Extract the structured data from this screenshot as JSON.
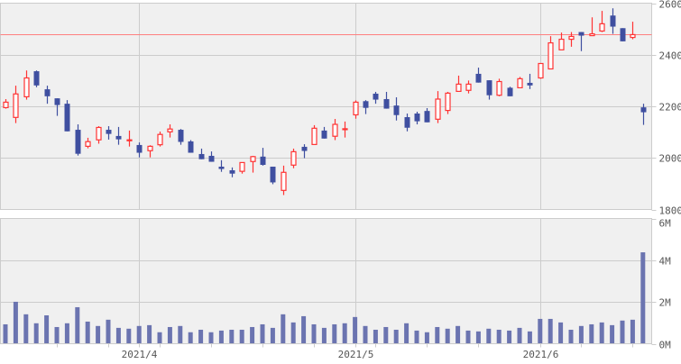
{
  "chart_data": {
    "type": "candlestick",
    "title": "",
    "colors": {
      "up": "#ff3333",
      "down": "#3f4fa0",
      "volume": "#6b74b0",
      "reference_line": "#ff8080",
      "plot_bg": "#f0f0f0",
      "grid": "#cccccc"
    },
    "price_axis": {
      "ylim": [
        1800,
        2600
      ],
      "ticks": [
        "1800",
        "2000",
        "2200",
        "2400",
        "2600"
      ]
    },
    "volume_axis": {
      "ylim": [
        0,
        6
      ],
      "unit": "M",
      "ticks": [
        "0M",
        "2M",
        "4M",
        "6M"
      ]
    },
    "reference_line": 2478,
    "x_labels": [
      {
        "index": 13,
        "label": "2021/4"
      },
      {
        "index": 34,
        "label": "2021/5"
      },
      {
        "index": 52,
        "label": "2021/6"
      }
    ],
    "minor_tick_indices": [
      5,
      10,
      15,
      20,
      25,
      30,
      36,
      41,
      46,
      56,
      61
    ],
    "ohlc": [
      [
        2195,
        2228,
        2191,
        2216
      ],
      [
        2157,
        2280,
        2135,
        2248
      ],
      [
        2237,
        2339,
        2226,
        2310
      ],
      [
        2336,
        2339,
        2274,
        2281
      ],
      [
        2266,
        2280,
        2210,
        2239
      ],
      [
        2231,
        2231,
        2163,
        2205
      ],
      [
        2210,
        2224,
        2103,
        2103
      ],
      [
        2109,
        2130,
        2009,
        2016
      ],
      [
        2045,
        2078,
        2037,
        2063
      ],
      [
        2070,
        2123,
        2055,
        2118
      ],
      [
        2109,
        2123,
        2071,
        2093
      ],
      [
        2085,
        2120,
        2051,
        2072
      ],
      [
        2068,
        2106,
        2044,
        2070
      ],
      [
        2050,
        2060,
        2002,
        2020
      ],
      [
        2028,
        2049,
        2002,
        2045
      ],
      [
        2051,
        2102,
        2044,
        2091
      ],
      [
        2101,
        2130,
        2079,
        2112
      ],
      [
        2109,
        2112,
        2051,
        2062
      ],
      [
        2064,
        2069,
        2020,
        2020
      ],
      [
        2015,
        2036,
        1995,
        1995
      ],
      [
        2008,
        2025,
        1985,
        1985
      ],
      [
        1966,
        1991,
        1946,
        1957
      ],
      [
        1952,
        1963,
        1925,
        1939
      ],
      [
        1948,
        1982,
        1939,
        1982
      ],
      [
        1986,
        2008,
        1943,
        2005
      ],
      [
        2005,
        2039,
        1970,
        1973
      ],
      [
        1966,
        1966,
        1898,
        1905
      ],
      [
        1874,
        1970,
        1856,
        1944
      ],
      [
        1972,
        2036,
        1960,
        2024
      ],
      [
        2043,
        2053,
        1999,
        2027
      ],
      [
        2052,
        2127,
        2052,
        2115
      ],
      [
        2106,
        2120,
        2075,
        2075
      ],
      [
        2084,
        2151,
        2069,
        2130
      ],
      [
        2111,
        2141,
        2079,
        2113
      ],
      [
        2167,
        2223,
        2152,
        2216
      ],
      [
        2220,
        2224,
        2170,
        2194
      ],
      [
        2249,
        2256,
        2210,
        2226
      ],
      [
        2228,
        2256,
        2191,
        2191
      ],
      [
        2203,
        2235,
        2145,
        2166
      ],
      [
        2158,
        2172,
        2103,
        2117
      ],
      [
        2172,
        2179,
        2130,
        2142
      ],
      [
        2182,
        2193,
        2138,
        2138
      ],
      [
        2150,
        2259,
        2135,
        2228
      ],
      [
        2184,
        2256,
        2170,
        2251
      ],
      [
        2258,
        2319,
        2258,
        2286
      ],
      [
        2262,
        2300,
        2250,
        2286
      ],
      [
        2326,
        2350,
        2292,
        2292
      ],
      [
        2301,
        2301,
        2226,
        2243
      ],
      [
        2243,
        2307,
        2239,
        2296
      ],
      [
        2272,
        2276,
        2239,
        2239
      ],
      [
        2272,
        2314,
        2272,
        2307
      ],
      [
        2291,
        2326,
        2267,
        2281
      ],
      [
        2310,
        2366,
        2307,
        2366
      ],
      [
        2345,
        2472,
        2345,
        2446
      ],
      [
        2419,
        2486,
        2419,
        2460
      ],
      [
        2460,
        2488,
        2431,
        2471
      ],
      [
        2488,
        2488,
        2414,
        2474
      ],
      [
        2474,
        2545,
        2474,
        2481
      ],
      [
        2492,
        2570,
        2488,
        2520
      ],
      [
        2552,
        2580,
        2481,
        2509
      ],
      [
        2503,
        2503,
        2452,
        2452
      ],
      [
        2467,
        2528,
        2460,
        2478
      ],
      [
        2196,
        2210,
        2128,
        2177
      ]
    ],
    "volume_millions": [
      0.93,
      2.01,
      1.41,
      0.98,
      1.36,
      0.8,
      0.98,
      1.75,
      1.06,
      0.85,
      1.15,
      0.76,
      0.72,
      0.85,
      0.89,
      0.55,
      0.8,
      0.85,
      0.55,
      0.67,
      0.55,
      0.63,
      0.67,
      0.67,
      0.8,
      0.93,
      0.76,
      1.41,
      1.02,
      1.32,
      0.93,
      0.76,
      0.93,
      0.98,
      1.28,
      0.85,
      0.67,
      0.8,
      0.67,
      0.98,
      0.63,
      0.55,
      0.8,
      0.72,
      0.85,
      0.63,
      0.59,
      0.72,
      0.67,
      0.63,
      0.76,
      0.59,
      1.19,
      1.19,
      1.02,
      0.67,
      0.85,
      0.93,
      1.02,
      0.89,
      1.11,
      1.15,
      4.38
    ]
  }
}
